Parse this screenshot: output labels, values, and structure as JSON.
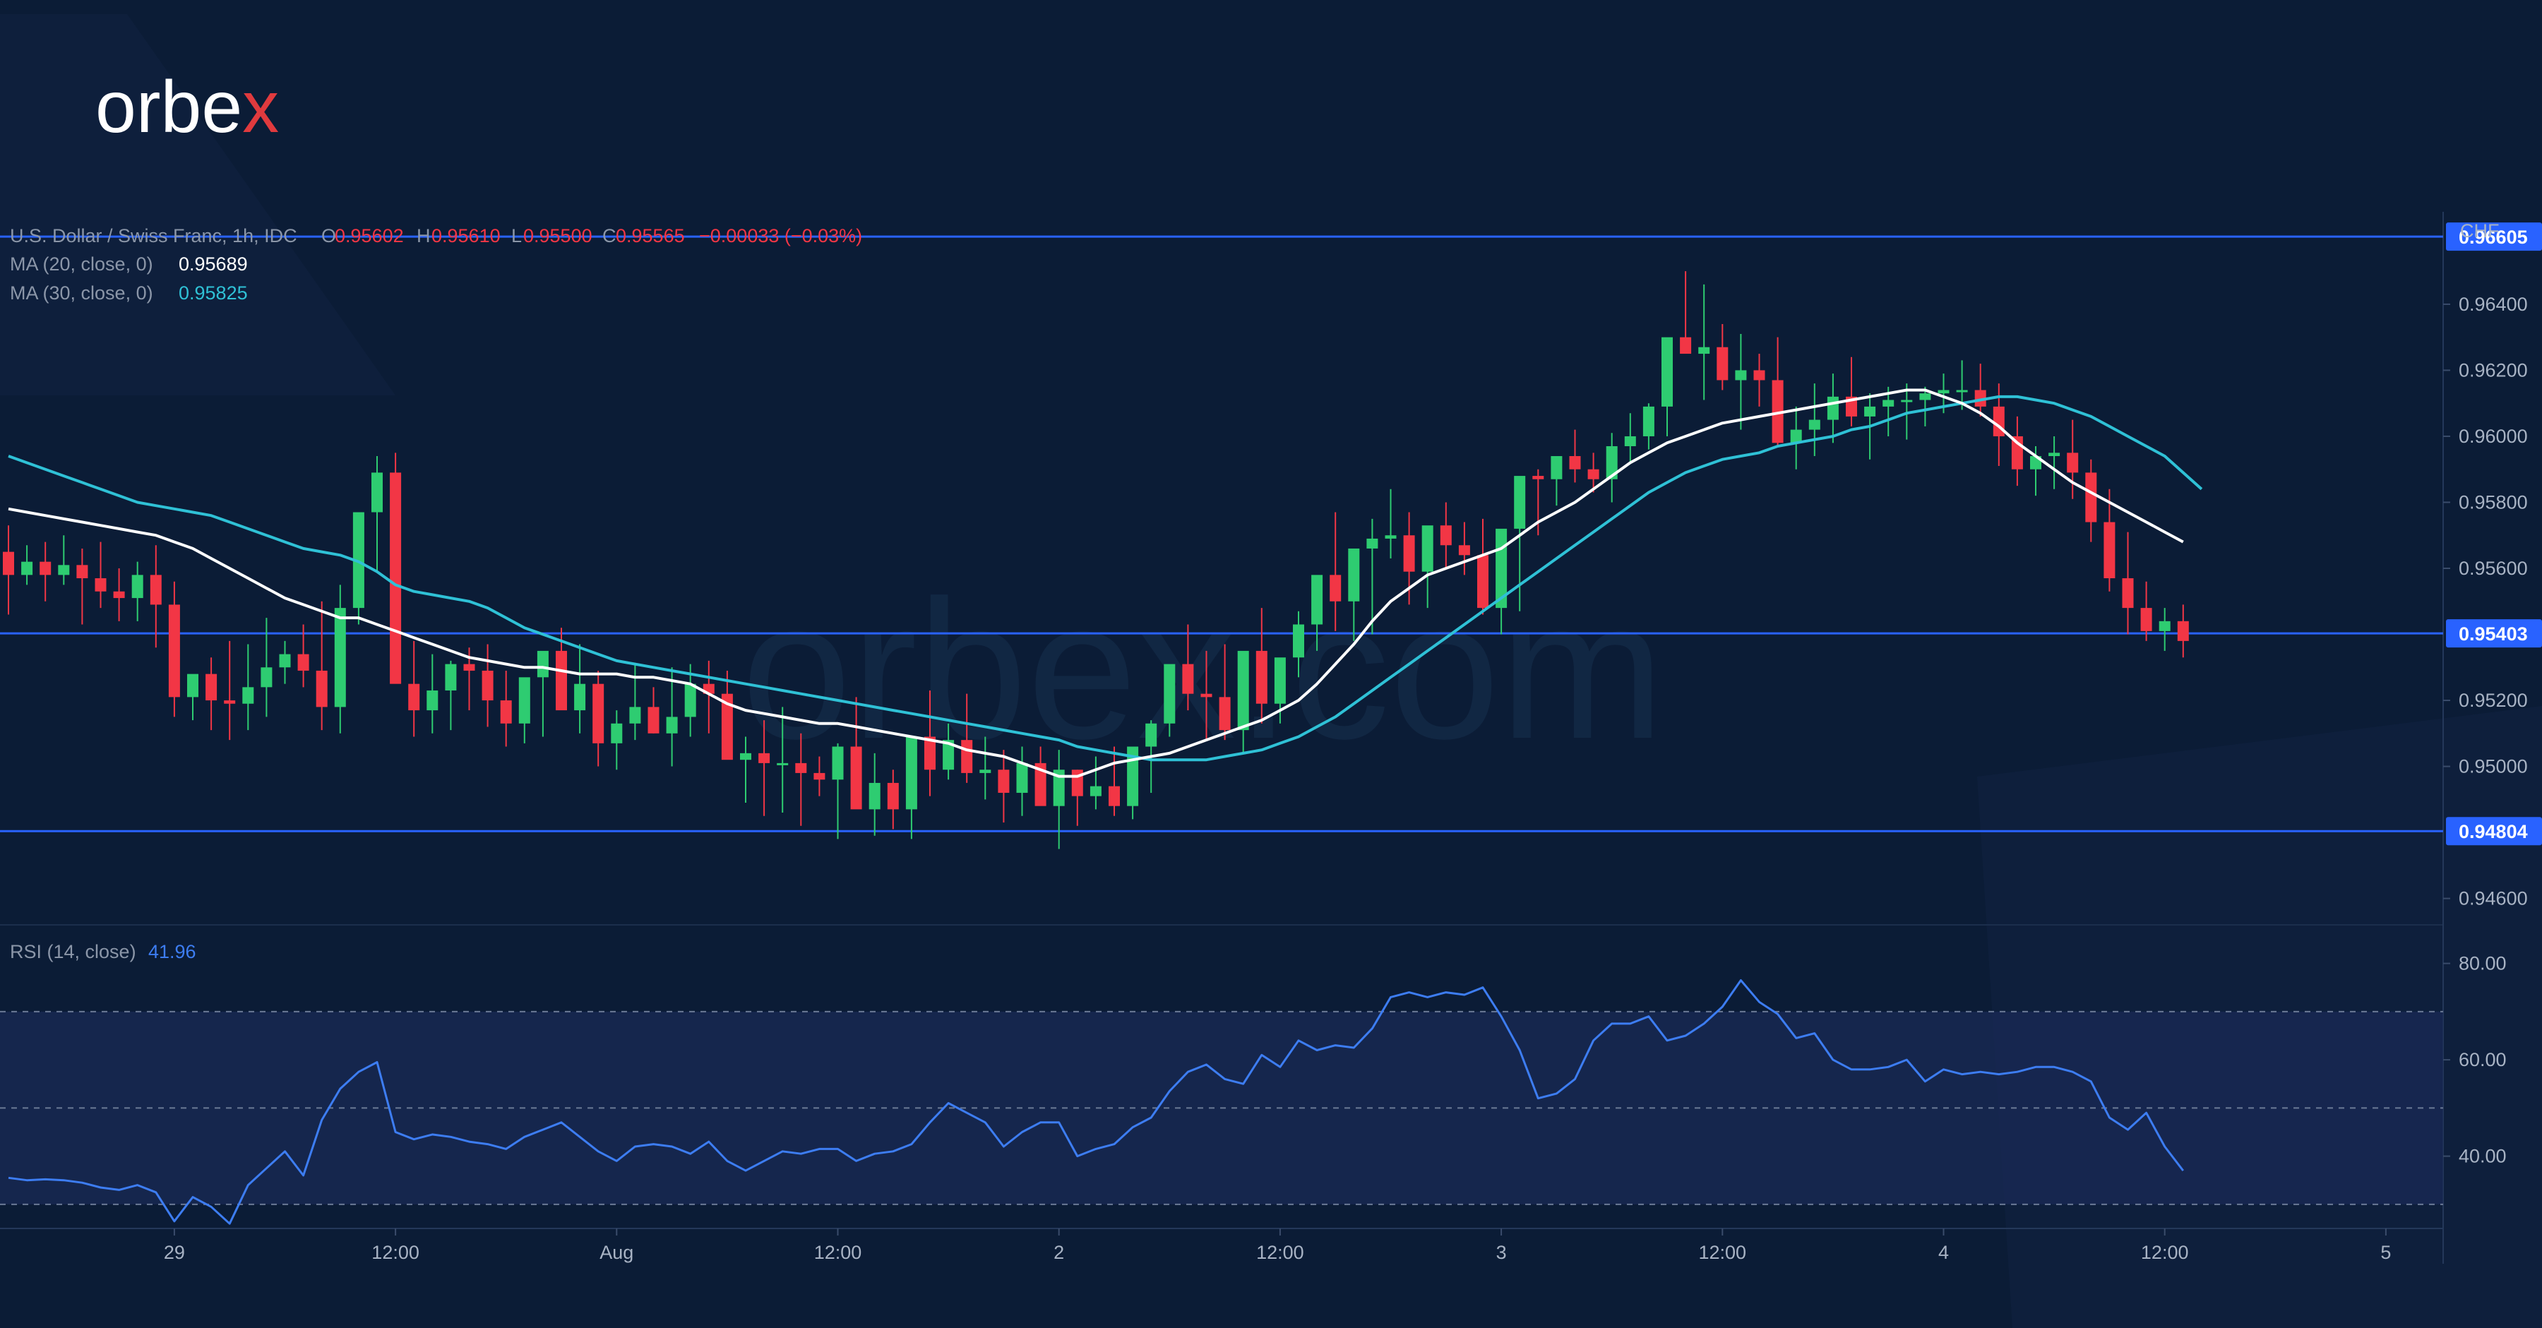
{
  "brand": {
    "logo_text": "orbex",
    "watermark_text": "orbex.com"
  },
  "colors": {
    "background": "#0b1c36",
    "candle_up": "#2ecc71",
    "candle_down": "#f23645",
    "ma20": "#ffffff",
    "ma30": "#2fc1d6",
    "rsi_line": "#3d7df2",
    "level_line": "#2962ff",
    "rsi_band": "#1a2a55"
  },
  "legend": {
    "symbol": "U.S. Dollar / Swiss Franc, 1h, IDC",
    "ohlc": {
      "o_label": "O",
      "o": "0.95602",
      "h_label": "H",
      "h": "0.95610",
      "l_label": "L",
      "l": "0.95500",
      "c_label": "C",
      "c": "0.95565",
      "change": "−0.00033 (−0.03%)"
    },
    "ma20_label": "MA (20, close, 0)",
    "ma20_value": "0.95689",
    "ma30_label": "MA (30, close, 0)",
    "ma30_value": "0.95825",
    "rsi_label": "RSI (14, close)",
    "rsi_value": "41.96"
  },
  "chart_data": [
    {
      "type": "candlestick",
      "title": "U.S. Dollar / Swiss Franc, 1h, IDC",
      "currency_label": "CHF",
      "ylim": [
        0.9452,
        0.9668
      ],
      "y_ticks": [
        0.964,
        0.962,
        0.96,
        0.958,
        0.956,
        0.952,
        0.95,
        0.946
      ],
      "y_tick_labels": [
        "0.96400",
        "0.96200",
        "0.96000",
        "0.95800",
        "0.95600",
        "0.95200",
        "0.95000",
        "0.94600"
      ],
      "x_ticks": [
        {
          "label": "29",
          "index": 9
        },
        {
          "label": "12:00",
          "index": 21
        },
        {
          "label": "Aug",
          "index": 33
        },
        {
          "label": "12:00",
          "index": 45
        },
        {
          "label": "2",
          "index": 57
        },
        {
          "label": "12:00",
          "index": 69
        },
        {
          "label": "3",
          "index": 81
        },
        {
          "label": "12:00",
          "index": 93
        },
        {
          "label": "4",
          "index": 105
        },
        {
          "label": "12:00",
          "index": 117
        },
        {
          "label": "5",
          "index": 129
        }
      ],
      "levels": [
        {
          "value": 0.96605,
          "label": "0.96605"
        },
        {
          "value": 0.95403,
          "label": "0.95403"
        },
        {
          "value": 0.94804,
          "label": "0.94804"
        }
      ],
      "series": [
        {
          "name": "MA (20, close, 0)",
          "values": [
            0.9578,
            0.9577,
            0.9576,
            0.9575,
            0.9574,
            0.9573,
            0.9572,
            0.9571,
            0.957,
            0.9568,
            0.9566,
            0.9563,
            0.956,
            0.9557,
            0.9554,
            0.9551,
            0.9549,
            0.9547,
            0.9545,
            0.9545,
            0.9543,
            0.9541,
            0.9539,
            0.9537,
            0.9535,
            0.9533,
            0.9532,
            0.9531,
            0.953,
            0.953,
            0.9529,
            0.9528,
            0.9528,
            0.9528,
            0.9527,
            0.9527,
            0.9526,
            0.9525,
            0.9522,
            0.9519,
            0.9517,
            0.9516,
            0.9515,
            0.9514,
            0.9513,
            0.9513,
            0.9512,
            0.9511,
            0.951,
            0.9509,
            0.9508,
            0.9507,
            0.9505,
            0.9504,
            0.9503,
            0.9501,
            0.9499,
            0.9497,
            0.9497,
            0.9499,
            0.9501,
            0.9502,
            0.9503,
            0.9504,
            0.9506,
            0.9508,
            0.951,
            0.9512,
            0.9514,
            0.9517,
            0.952,
            0.9525,
            0.9531,
            0.9537,
            0.9544,
            0.955,
            0.9554,
            0.9558,
            0.956,
            0.9562,
            0.9564,
            0.9566,
            0.957,
            0.9574,
            0.9577,
            0.958,
            0.9584,
            0.9588,
            0.9592,
            0.9595,
            0.9598,
            0.96,
            0.9602,
            0.9604,
            0.9605,
            0.9606,
            0.9607,
            0.9608,
            0.9609,
            0.961,
            0.9611,
            0.9612,
            0.9613,
            0.9614,
            0.9614,
            0.9612,
            0.961,
            0.9607,
            0.9603,
            0.9598,
            0.9594,
            0.959,
            0.9586,
            0.9583,
            0.958,
            0.9577,
            0.9574,
            0.9571,
            0.9568
          ]
        },
        {
          "name": "MA (30, close, 0)",
          "values": [
            0.9594,
            0.9592,
            0.959,
            0.9588,
            0.9586,
            0.9584,
            0.9582,
            0.958,
            0.9579,
            0.9578,
            0.9577,
            0.9576,
            0.9574,
            0.9572,
            0.957,
            0.9568,
            0.9566,
            0.9565,
            0.9564,
            0.9562,
            0.9559,
            0.9555,
            0.9553,
            0.9552,
            0.9551,
            0.955,
            0.9548,
            0.9545,
            0.9542,
            0.954,
            0.9538,
            0.9536,
            0.9534,
            0.9532,
            0.9531,
            0.953,
            0.9529,
            0.9528,
            0.9527,
            0.9526,
            0.9525,
            0.9524,
            0.9523,
            0.9522,
            0.9521,
            0.952,
            0.9519,
            0.9518,
            0.9517,
            0.9516,
            0.9515,
            0.9514,
            0.9513,
            0.9512,
            0.9511,
            0.951,
            0.9509,
            0.9508,
            0.9506,
            0.9505,
            0.9504,
            0.9503,
            0.9502,
            0.9502,
            0.9502,
            0.9502,
            0.9503,
            0.9504,
            0.9505,
            0.9507,
            0.9509,
            0.9512,
            0.9515,
            0.9519,
            0.9523,
            0.9527,
            0.9531,
            0.9535,
            0.9539,
            0.9543,
            0.9547,
            0.9551,
            0.9555,
            0.9559,
            0.9563,
            0.9567,
            0.9571,
            0.9575,
            0.9579,
            0.9583,
            0.9586,
            0.9589,
            0.9591,
            0.9593,
            0.9594,
            0.9595,
            0.9597,
            0.9598,
            0.9599,
            0.96,
            0.9602,
            0.9603,
            0.9605,
            0.9607,
            0.9608,
            0.9609,
            0.961,
            0.9611,
            0.9612,
            0.9612,
            0.9611,
            0.961,
            0.9608,
            0.9606,
            0.9603,
            0.96,
            0.9597,
            0.9594,
            0.9589,
            0.9584
          ]
        },
        {
          "name": "open",
          "values": [
            0.9565,
            0.9558,
            0.9562,
            0.9558,
            0.9561,
            0.9557,
            0.9553,
            0.9551,
            0.9558,
            0.9549,
            0.9521,
            0.9528,
            0.952,
            0.9519,
            0.9524,
            0.953,
            0.9534,
            0.9529,
            0.9518,
            0.9548,
            0.9577,
            0.9589,
            0.9525,
            0.9517,
            0.9523,
            0.9531,
            0.9529,
            0.952,
            0.9513,
            0.9527,
            0.9535,
            0.9517,
            0.9525,
            0.9507,
            0.9513,
            0.9518,
            0.951,
            0.9515,
            0.9525,
            0.9522,
            0.9502,
            0.9504,
            0.9501,
            0.9501,
            0.9498,
            0.9496,
            0.9506,
            0.9487,
            0.9495,
            0.9487,
            0.9509,
            0.9499,
            0.9508,
            0.9498,
            0.9499,
            0.9492,
            0.9501,
            0.9488,
            0.9499,
            0.9491,
            0.9494,
            0.9488,
            0.9506,
            0.9513,
            0.9531,
            0.9522,
            0.9521,
            0.9511,
            0.9535,
            0.9519,
            0.9533,
            0.9543,
            0.9558,
            0.955,
            0.9566,
            0.9569,
            0.957,
            0.9559,
            0.9573,
            0.9567,
            0.9564,
            0.9548,
            0.9572,
            0.9588,
            0.9587,
            0.9594,
            0.959,
            0.9587,
            0.9597,
            0.96,
            0.9609,
            0.963,
            0.9625,
            0.9627,
            0.9617,
            0.962,
            0.9617,
            0.9598,
            0.9602,
            0.9605,
            0.9612,
            0.9606,
            0.9609,
            0.9611,
            0.9611,
            0.9613,
            0.9614,
            0.9614,
            0.9609,
            0.96,
            0.959,
            0.9594,
            0.9595,
            0.9589,
            0.9574,
            0.9557,
            0.9548,
            0.9541,
            0.9544
          ]
        },
        {
          "name": "high",
          "values": [
            0.9573,
            0.9567,
            0.9568,
            0.957,
            0.9566,
            0.9568,
            0.956,
            0.9562,
            0.9567,
            0.9556,
            0.9527,
            0.9533,
            0.9538,
            0.9537,
            0.9545,
            0.9538,
            0.9543,
            0.955,
            0.9555,
            0.9575,
            0.9594,
            0.9595,
            0.9538,
            0.9534,
            0.9532,
            0.9536,
            0.9537,
            0.9529,
            0.9521,
            0.9534,
            0.9542,
            0.9537,
            0.9529,
            0.9517,
            0.9531,
            0.9524,
            0.953,
            0.9531,
            0.9532,
            0.9529,
            0.9509,
            0.9514,
            0.9518,
            0.951,
            0.9503,
            0.9507,
            0.9521,
            0.9504,
            0.9499,
            0.9492,
            0.9523,
            0.9513,
            0.9522,
            0.9509,
            0.9505,
            0.9506,
            0.9506,
            0.9505,
            0.9499,
            0.9503,
            0.9506,
            0.9497,
            0.9514,
            0.9524,
            0.9543,
            0.9535,
            0.9537,
            0.9528,
            0.9548,
            0.9531,
            0.9547,
            0.9554,
            0.9577,
            0.9563,
            0.9575,
            0.9584,
            0.9577,
            0.9568,
            0.958,
            0.9574,
            0.9575,
            0.9559,
            0.9575,
            0.959,
            0.9592,
            0.9602,
            0.9595,
            0.9601,
            0.9607,
            0.961,
            0.9617,
            0.965,
            0.9646,
            0.9634,
            0.9631,
            0.9625,
            0.963,
            0.9609,
            0.9616,
            0.9619,
            0.9624,
            0.9613,
            0.9615,
            0.9616,
            0.9615,
            0.9619,
            0.9623,
            0.9622,
            0.9616,
            0.9606,
            0.9597,
            0.96,
            0.9605,
            0.9593,
            0.9584,
            0.9571,
            0.9556,
            0.9548,
            0.9549
          ]
        },
        {
          "name": "low",
          "values": [
            0.9546,
            0.9555,
            0.955,
            0.9555,
            0.9543,
            0.9548,
            0.9544,
            0.9544,
            0.9536,
            0.9515,
            0.9514,
            0.9511,
            0.9508,
            0.9511,
            0.9515,
            0.9525,
            0.9524,
            0.9511,
            0.951,
            0.9543,
            0.9559,
            0.9544,
            0.9509,
            0.951,
            0.9511,
            0.9517,
            0.9512,
            0.9506,
            0.9507,
            0.9509,
            0.9526,
            0.951,
            0.95,
            0.9499,
            0.9508,
            0.951,
            0.95,
            0.9509,
            0.951,
            0.9503,
            0.9489,
            0.9485,
            0.9486,
            0.9482,
            0.9491,
            0.9478,
            0.9488,
            0.9479,
            0.9481,
            0.9478,
            0.9491,
            0.9496,
            0.9495,
            0.949,
            0.9483,
            0.9485,
            0.9489,
            0.9475,
            0.9482,
            0.9487,
            0.9485,
            0.9484,
            0.9492,
            0.9509,
            0.9517,
            0.9508,
            0.9508,
            0.9504,
            0.9513,
            0.9513,
            0.9527,
            0.9535,
            0.9541,
            0.9538,
            0.954,
            0.9563,
            0.9549,
            0.9548,
            0.956,
            0.9558,
            0.9546,
            0.954,
            0.9547,
            0.957,
            0.9579,
            0.9586,
            0.9583,
            0.958,
            0.9592,
            0.9596,
            0.96,
            0.9628,
            0.9611,
            0.9614,
            0.9602,
            0.9609,
            0.9597,
            0.959,
            0.9594,
            0.9598,
            0.9603,
            0.9593,
            0.96,
            0.9599,
            0.9603,
            0.9607,
            0.9608,
            0.9606,
            0.9591,
            0.9585,
            0.9582,
            0.9584,
            0.9581,
            0.9568,
            0.9553,
            0.954,
            0.9538,
            0.9535,
            0.9533
          ]
        },
        {
          "name": "close",
          "values": [
            0.9558,
            0.9562,
            0.9558,
            0.9561,
            0.9557,
            0.9553,
            0.9551,
            0.9558,
            0.9549,
            0.9521,
            0.9528,
            0.952,
            0.9519,
            0.9524,
            0.953,
            0.9534,
            0.9529,
            0.9518,
            0.9548,
            0.9577,
            0.9589,
            0.9525,
            0.9517,
            0.9523,
            0.9531,
            0.9529,
            0.952,
            0.9513,
            0.9527,
            0.9535,
            0.9517,
            0.9525,
            0.9507,
            0.9513,
            0.9518,
            0.951,
            0.9515,
            0.9525,
            0.9522,
            0.9502,
            0.9504,
            0.9501,
            0.9501,
            0.9498,
            0.9496,
            0.9506,
            0.9487,
            0.9495,
            0.9487,
            0.9509,
            0.9499,
            0.9508,
            0.9498,
            0.9499,
            0.9492,
            0.9501,
            0.9488,
            0.9499,
            0.9491,
            0.9494,
            0.9488,
            0.9506,
            0.9513,
            0.9531,
            0.9522,
            0.9521,
            0.9511,
            0.9535,
            0.9519,
            0.9533,
            0.9543,
            0.9558,
            0.955,
            0.9566,
            0.9569,
            0.957,
            0.9559,
            0.9573,
            0.9567,
            0.9564,
            0.9548,
            0.9572,
            0.9588,
            0.9587,
            0.9594,
            0.959,
            0.9587,
            0.9597,
            0.96,
            0.9609,
            0.963,
            0.9625,
            0.9627,
            0.9617,
            0.962,
            0.9617,
            0.9598,
            0.9602,
            0.9605,
            0.9612,
            0.9606,
            0.9609,
            0.9611,
            0.9611,
            0.9613,
            0.9614,
            0.9614,
            0.9609,
            0.96,
            0.959,
            0.9594,
            0.9595,
            0.9589,
            0.9574,
            0.9557,
            0.9548,
            0.9541,
            0.9544,
            0.9538
          ]
        }
      ]
    },
    {
      "type": "line",
      "title": "RSI (14, close)",
      "ylim": [
        25,
        88
      ],
      "y_ticks": [
        80,
        60,
        40
      ],
      "y_tick_labels": [
        "80.00",
        "60.00",
        "40.00"
      ],
      "bands": [
        70,
        50,
        30
      ],
      "series": [
        {
          "name": "RSI (14, close)",
          "values": [
            35.5,
            35,
            35.2,
            35,
            34.5,
            33.5,
            33,
            34,
            32.5,
            26.5,
            31.5,
            29.5,
            26,
            34,
            37.5,
            41,
            36,
            47.5,
            54,
            57.5,
            59.5,
            45,
            43.5,
            44.5,
            44,
            43,
            42.5,
            41.5,
            44,
            45.5,
            47,
            44,
            41,
            39,
            42,
            42.5,
            42,
            40.5,
            43,
            39,
            37,
            39,
            41,
            40.5,
            41.5,
            41.5,
            39,
            40.5,
            41,
            42.5,
            47,
            51,
            49,
            47,
            42,
            45,
            47,
            47,
            40,
            41.5,
            42.5,
            46,
            48,
            53.5,
            57.5,
            59,
            56,
            55,
            61,
            58.5,
            64,
            62,
            63,
            62.5,
            66.5,
            73,
            74,
            73,
            74,
            73.5,
            75,
            69,
            62,
            52,
            53,
            56,
            64,
            67.5,
            67.5,
            69,
            64,
            65,
            67.5,
            71,
            76.5,
            72,
            69.5,
            64.5,
            65.5,
            60,
            58,
            58,
            58.5,
            60,
            55.5,
            58,
            57,
            57.5,
            57,
            57.5,
            58.5,
            58.5,
            57.5,
            55.5,
            48,
            45.5,
            49,
            42,
            37
          ]
        }
      ]
    }
  ]
}
